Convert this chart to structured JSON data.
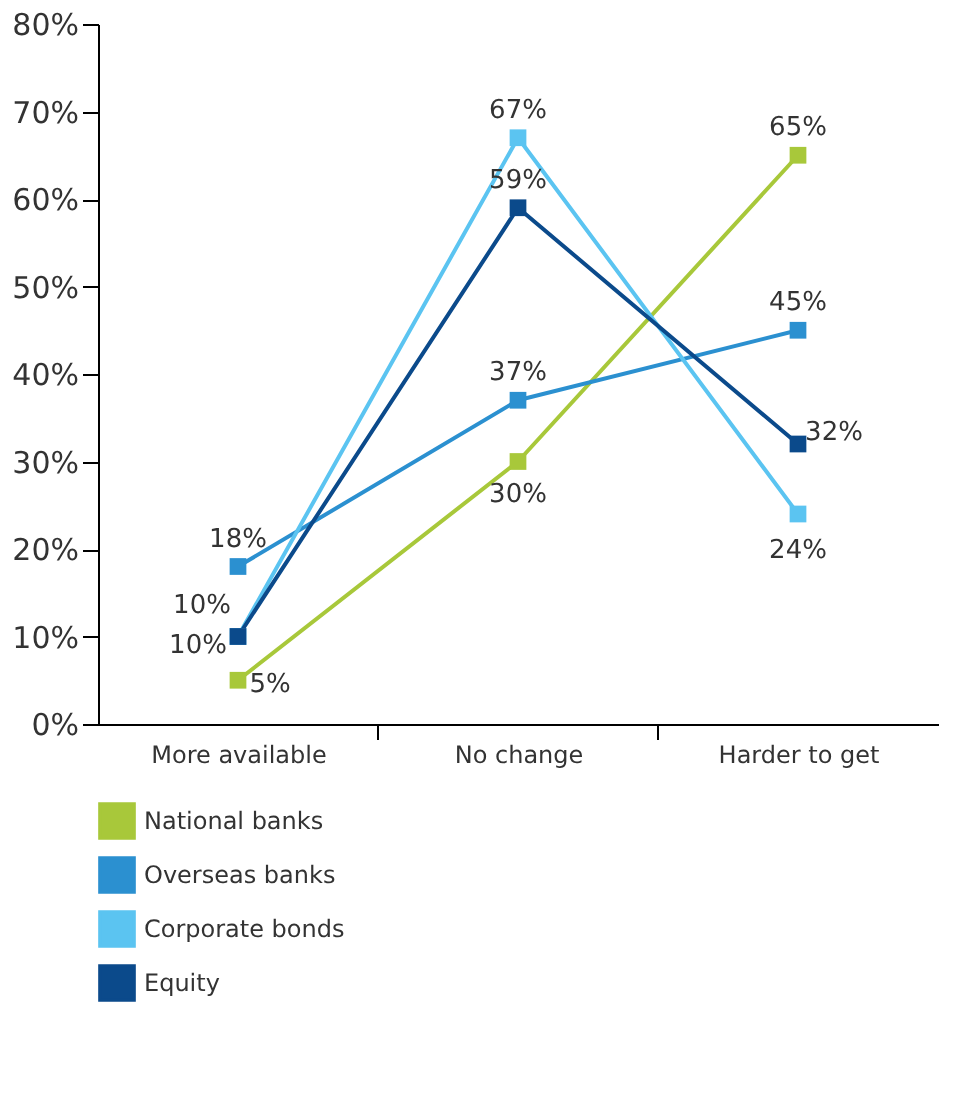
{
  "chart_data": {
    "type": "line",
    "categories": [
      "More available",
      "No change",
      "Harder to get"
    ],
    "series": [
      {
        "name": "National banks",
        "color": "#a8c83a",
        "values": [
          5,
          30,
          65
        ],
        "value_labels": [
          "5%",
          "30%",
          "65%"
        ]
      },
      {
        "name": "Overseas banks",
        "color": "#2b90d0",
        "values": [
          18,
          37,
          45
        ],
        "value_labels": [
          "18%",
          "37%",
          "45%"
        ]
      },
      {
        "name": "Corporate bonds",
        "color": "#5bc4f1",
        "values": [
          10,
          67,
          24
        ],
        "value_labels": [
          "10%",
          "67%",
          "24%"
        ]
      },
      {
        "name": "Equity",
        "color": "#0b4a8b",
        "values": [
          10,
          59,
          32
        ],
        "value_labels": [
          "10%",
          "59%",
          "32%"
        ]
      }
    ],
    "ylim": [
      0,
      80
    ],
    "yticks": [
      {
        "value": 0,
        "label": "0%"
      },
      {
        "value": 10,
        "label": "10%"
      },
      {
        "value": 20,
        "label": "20%"
      },
      {
        "value": 30,
        "label": "30%"
      },
      {
        "value": 40,
        "label": "40%"
      },
      {
        "value": 50,
        "label": "50%"
      },
      {
        "value": 60,
        "label": "60%"
      },
      {
        "value": 70,
        "label": "70%"
      },
      {
        "value": 80,
        "label": "80%"
      }
    ],
    "marker": "square",
    "grid": false,
    "legend": "bottom"
  }
}
